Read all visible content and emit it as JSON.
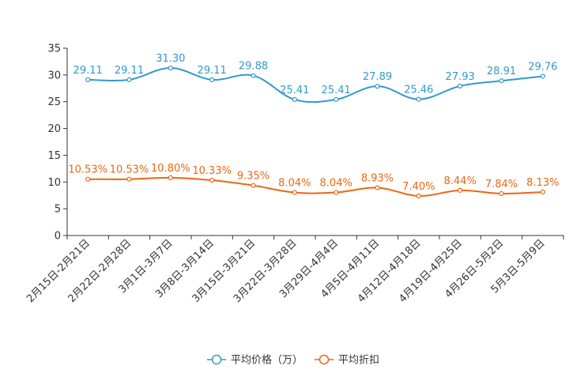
{
  "chart_data": {
    "type": "line",
    "title": "",
    "xlabel": "",
    "ylabel": "",
    "ylim": [
      0,
      35
    ],
    "yticks": [
      0,
      5,
      10,
      15,
      20,
      25,
      30,
      35
    ],
    "legend_position": "bottom-center",
    "categories": [
      "2月15日-2月21日",
      "2月22日-2月28日",
      "3月1日-3月7日",
      "3月8日-3月14日",
      "3月15日-3月21日",
      "3月22日-3月28日",
      "3月29日-4月4日",
      "4月5日-4月11日",
      "4月12日-4月18日",
      "4月19日-4月25日",
      "4月26日-5月2日",
      "5月3日-5月9日"
    ],
    "series": [
      {
        "name": "平均价格（万）",
        "color": "#3399cc",
        "values": [
          29.11,
          29.11,
          31.3,
          29.11,
          29.88,
          25.41,
          25.41,
          27.89,
          25.46,
          27.93,
          28.91,
          29.76
        ],
        "labels": [
          "29.11",
          "29.11",
          "31.30",
          "29.11",
          "29.88",
          "25.41",
          "25.41",
          "27.89",
          "25.46",
          "27.93",
          "28.91",
          "29.76"
        ]
      },
      {
        "name": "平均折扣",
        "color": "#ee6611",
        "values": [
          10.53,
          10.53,
          10.8,
          10.33,
          9.35,
          8.04,
          8.04,
          8.93,
          7.4,
          8.44,
          7.84,
          8.13
        ],
        "labels": [
          "10.53%",
          "10.53%",
          "10.80%",
          "10.33%",
          "9.35%",
          "8.04%",
          "8.04%",
          "8.93%",
          "7.40%",
          "8.44%",
          "7.84%",
          "8.13%"
        ]
      }
    ]
  }
}
